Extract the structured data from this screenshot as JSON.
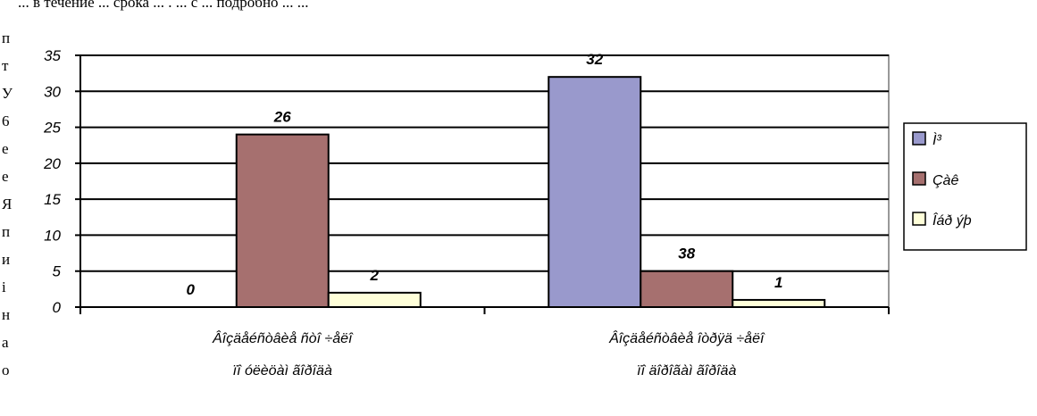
{
  "background_text": {
    "top_line": "... в течение ... срока ... . ... с ... подробно ... ...",
    "left_fragments": [
      "п",
      "т",
      "У",
      "6",
      "е",
      "е",
      "Я",
      "п",
      "и",
      "і",
      "н",
      "а",
      "о"
    ]
  },
  "chart_data": {
    "type": "bar",
    "categories": [
      [
        "Âîçäåéñòâèå ñòî ÷åëî",
        "ïî óëèöàì ãîðîäà"
      ],
      [
        "Âîçäåéñòâèå îòðÿä ÷åëî",
        "ïî äîðîãàì ãîðîäà"
      ]
    ],
    "series": [
      {
        "name": "Ì³",
        "values": [
          0,
          32
        ],
        "color": "#9999cc"
      },
      {
        "name": "Çàê",
        "values": [
          24,
          5
        ],
        "color": "#a6706f"
      },
      {
        "name": "Îáð ýþ",
        "values": [
          2,
          1
        ],
        "color": "#ffffd9"
      }
    ],
    "data_labels": [
      [
        "0",
        "32"
      ],
      [
        "26",
        "38"
      ],
      [
        "2",
        "1"
      ]
    ],
    "y_ticks": [
      "0",
      "5",
      "10",
      "15",
      "20",
      "25",
      "30",
      "35"
    ],
    "ylim": [
      0,
      35
    ],
    "grid": true,
    "legend": "right",
    "title": "",
    "xlabel": "",
    "ylabel": ""
  }
}
